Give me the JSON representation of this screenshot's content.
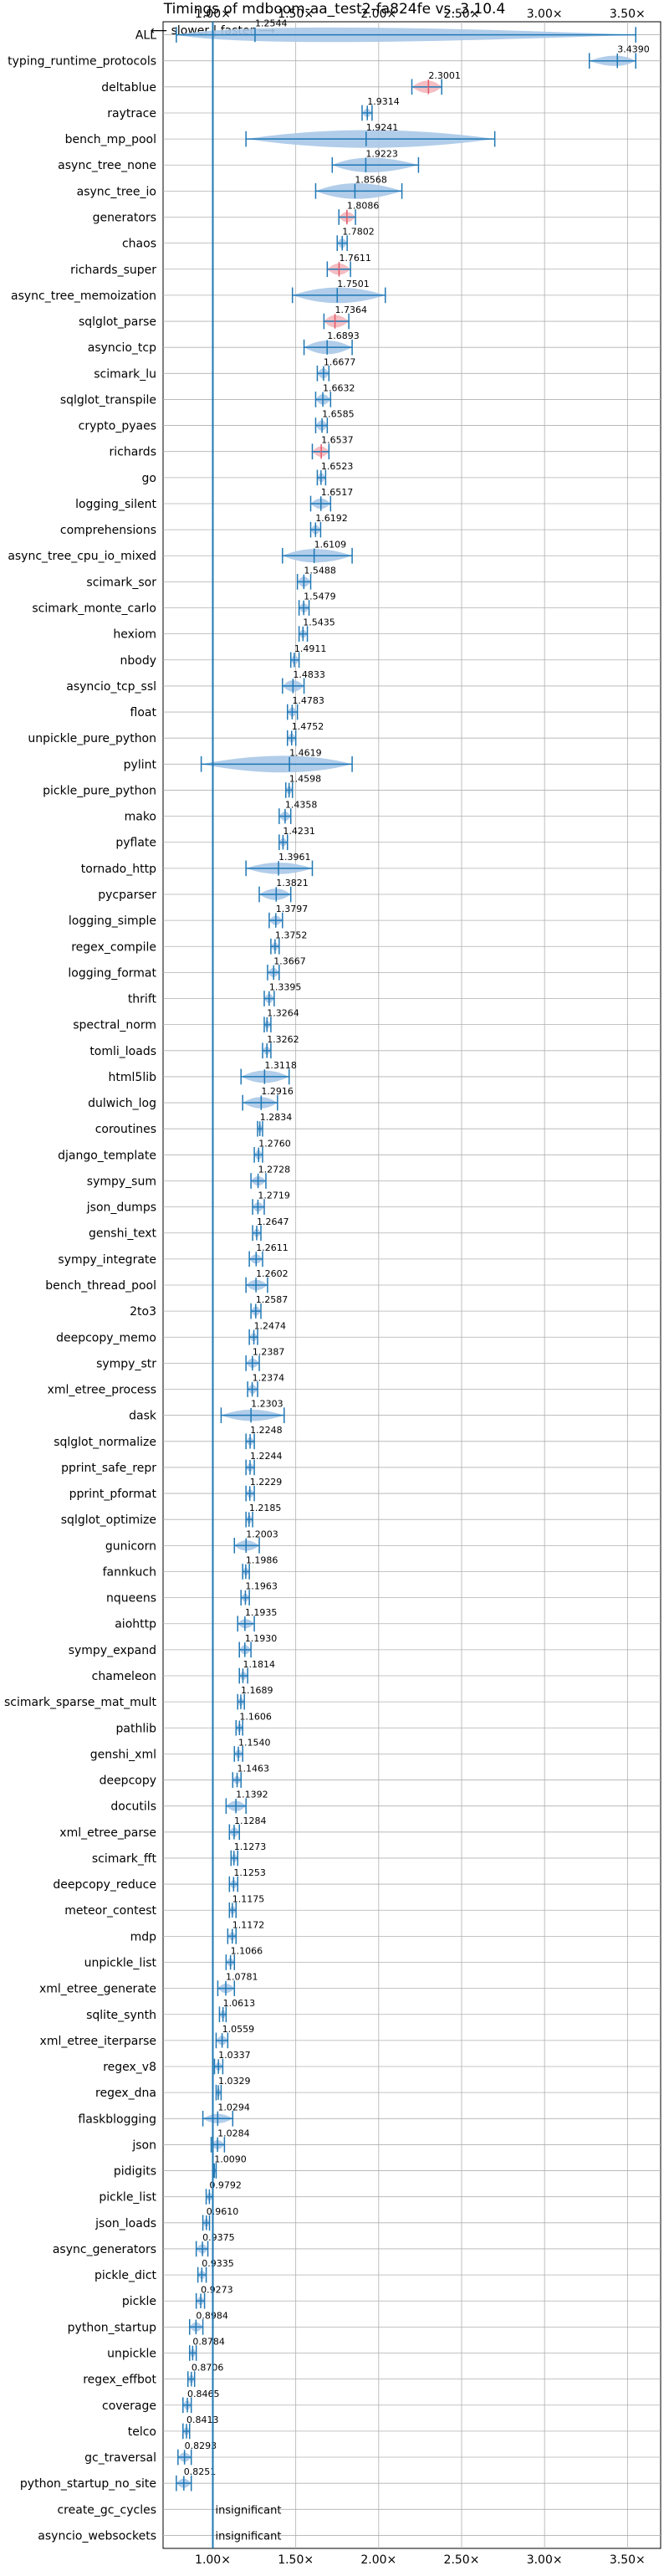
{
  "chart_data": {
    "type": "violin",
    "title": "Timings of mdboom-aa_test2-fa824fe vs. 3.10.4",
    "direction_note": "⟵ slower | faster ⟶",
    "xlim": [
      0.7,
      3.7
    ],
    "xticks": [
      1.0,
      1.5,
      2.0,
      2.5,
      3.0,
      3.5
    ],
    "xtick_labels": [
      "1.00×",
      "1.50×",
      "2.00×",
      "2.50×",
      "3.00×",
      "3.50×"
    ],
    "reference_x": 1.0,
    "colors": {
      "violin": "#a8c8e8",
      "violin_significant_worse": "#f3b7bd",
      "line": "#1f77b4",
      "mean_worse": "#e05a6a",
      "grid": "#b0b0b0"
    },
    "series": [
      {
        "name": "ALL",
        "mean": 1.2544,
        "lo": 0.78,
        "hi": 3.55,
        "w": 0.7,
        "label": "1.2544"
      },
      {
        "name": "typing_runtime_protocols",
        "mean": 3.439,
        "lo": 3.27,
        "hi": 3.55,
        "w": 0.5,
        "label": "3.4390"
      },
      {
        "name": "deltablue",
        "mean": 2.3001,
        "lo": 2.2,
        "hi": 2.38,
        "w": 0.6,
        "label": "2.3001",
        "worse": true
      },
      {
        "name": "raytrace",
        "mean": 1.9314,
        "lo": 1.9,
        "hi": 1.96,
        "w": 0.4,
        "label": "1.9314"
      },
      {
        "name": "bench_mp_pool",
        "mean": 1.9241,
        "lo": 1.2,
        "hi": 2.7,
        "w": 0.85,
        "label": "1.9241"
      },
      {
        "name": "async_tree_none",
        "mean": 1.9223,
        "lo": 1.72,
        "hi": 2.24,
        "w": 0.7,
        "label": "1.9223"
      },
      {
        "name": "async_tree_io",
        "mean": 1.8568,
        "lo": 1.62,
        "hi": 2.14,
        "w": 0.75,
        "label": "1.8568"
      },
      {
        "name": "generators",
        "mean": 1.8086,
        "lo": 1.76,
        "hi": 1.86,
        "w": 0.5,
        "label": "1.8086",
        "worse": true
      },
      {
        "name": "chaos",
        "mean": 1.7802,
        "lo": 1.75,
        "hi": 1.81,
        "w": 0.45,
        "label": "1.7802"
      },
      {
        "name": "richards_super",
        "mean": 1.7611,
        "lo": 1.69,
        "hi": 1.83,
        "w": 0.55,
        "label": "1.7611",
        "worse": true
      },
      {
        "name": "async_tree_memoization",
        "mean": 1.7501,
        "lo": 1.48,
        "hi": 2.04,
        "w": 0.75,
        "label": "1.7501"
      },
      {
        "name": "sqlglot_parse",
        "mean": 1.7364,
        "lo": 1.67,
        "hi": 1.82,
        "w": 0.6,
        "label": "1.7364",
        "worse": true
      },
      {
        "name": "asyncio_tcp",
        "mean": 1.6893,
        "lo": 1.55,
        "hi": 1.84,
        "w": 0.65,
        "label": "1.6893"
      },
      {
        "name": "scimark_lu",
        "mean": 1.6677,
        "lo": 1.63,
        "hi": 1.7,
        "w": 0.5,
        "label": "1.6677"
      },
      {
        "name": "sqlglot_transpile",
        "mean": 1.6632,
        "lo": 1.62,
        "hi": 1.71,
        "w": 0.5,
        "label": "1.6632"
      },
      {
        "name": "crypto_pyaes",
        "mean": 1.6585,
        "lo": 1.62,
        "hi": 1.69,
        "w": 0.5,
        "label": "1.6585"
      },
      {
        "name": "richards",
        "mean": 1.6537,
        "lo": 1.6,
        "hi": 1.7,
        "w": 0.5,
        "label": "1.6537",
        "worse": true
      },
      {
        "name": "go",
        "mean": 1.6523,
        "lo": 1.63,
        "hi": 1.68,
        "w": 0.45,
        "label": "1.6523"
      },
      {
        "name": "logging_silent",
        "mean": 1.6517,
        "lo": 1.59,
        "hi": 1.71,
        "w": 0.5,
        "label": "1.6517"
      },
      {
        "name": "comprehensions",
        "mean": 1.6192,
        "lo": 1.59,
        "hi": 1.65,
        "w": 0.45,
        "label": "1.6192"
      },
      {
        "name": "async_tree_cpu_io_mixed",
        "mean": 1.6109,
        "lo": 1.42,
        "hi": 1.84,
        "w": 0.65,
        "label": "1.6109"
      },
      {
        "name": "scimark_sor",
        "mean": 1.5488,
        "lo": 1.51,
        "hi": 1.59,
        "w": 0.5,
        "label": "1.5488"
      },
      {
        "name": "scimark_monte_carlo",
        "mean": 1.5479,
        "lo": 1.52,
        "hi": 1.58,
        "w": 0.45,
        "label": "1.5479"
      },
      {
        "name": "hexiom",
        "mean": 1.5435,
        "lo": 1.52,
        "hi": 1.57,
        "w": 0.4,
        "label": "1.5435"
      },
      {
        "name": "nbody",
        "mean": 1.4911,
        "lo": 1.47,
        "hi": 1.52,
        "w": 0.45,
        "label": "1.4911"
      },
      {
        "name": "asyncio_tcp_ssl",
        "mean": 1.4833,
        "lo": 1.42,
        "hi": 1.55,
        "w": 0.55,
        "label": "1.4833"
      },
      {
        "name": "float",
        "mean": 1.4783,
        "lo": 1.45,
        "hi": 1.51,
        "w": 0.45,
        "label": "1.4783"
      },
      {
        "name": "unpickle_pure_python",
        "mean": 1.4752,
        "lo": 1.45,
        "hi": 1.5,
        "w": 0.45,
        "label": "1.4752"
      },
      {
        "name": "pylint",
        "mean": 1.4619,
        "lo": 0.93,
        "hi": 1.84,
        "w": 0.8,
        "label": "1.4619"
      },
      {
        "name": "pickle_pure_python",
        "mean": 1.4598,
        "lo": 1.44,
        "hi": 1.48,
        "w": 0.4,
        "label": "1.4598"
      },
      {
        "name": "mako",
        "mean": 1.4358,
        "lo": 1.4,
        "hi": 1.47,
        "w": 0.45,
        "label": "1.4358"
      },
      {
        "name": "pyflate",
        "mean": 1.4231,
        "lo": 1.4,
        "hi": 1.45,
        "w": 0.4,
        "label": "1.4231"
      },
      {
        "name": "tornado_http",
        "mean": 1.3961,
        "lo": 1.2,
        "hi": 1.6,
        "w": 0.55,
        "label": "1.3961"
      },
      {
        "name": "pycparser",
        "mean": 1.3821,
        "lo": 1.28,
        "hi": 1.47,
        "w": 0.55,
        "label": "1.3821"
      },
      {
        "name": "logging_simple",
        "mean": 1.3797,
        "lo": 1.34,
        "hi": 1.42,
        "w": 0.45,
        "label": "1.3797"
      },
      {
        "name": "regex_compile",
        "mean": 1.3752,
        "lo": 1.35,
        "hi": 1.4,
        "w": 0.4,
        "label": "1.3752"
      },
      {
        "name": "logging_format",
        "mean": 1.3667,
        "lo": 1.33,
        "hi": 1.4,
        "w": 0.45,
        "label": "1.3667"
      },
      {
        "name": "thrift",
        "mean": 1.3395,
        "lo": 1.31,
        "hi": 1.37,
        "w": 0.45,
        "label": "1.3395"
      },
      {
        "name": "spectral_norm",
        "mean": 1.3264,
        "lo": 1.31,
        "hi": 1.35,
        "w": 0.4,
        "label": "1.3264"
      },
      {
        "name": "tomli_loads",
        "mean": 1.3262,
        "lo": 1.3,
        "hi": 1.35,
        "w": 0.4,
        "label": "1.3262"
      },
      {
        "name": "html5lib",
        "mean": 1.3118,
        "lo": 1.17,
        "hi": 1.46,
        "w": 0.6,
        "label": "1.3118"
      },
      {
        "name": "dulwich_log",
        "mean": 1.2916,
        "lo": 1.18,
        "hi": 1.39,
        "w": 0.55,
        "label": "1.2916"
      },
      {
        "name": "coroutines",
        "mean": 1.2834,
        "lo": 1.27,
        "hi": 1.3,
        "w": 0.4,
        "label": "1.2834"
      },
      {
        "name": "django_template",
        "mean": 1.276,
        "lo": 1.25,
        "hi": 1.3,
        "w": 0.45,
        "label": "1.2760"
      },
      {
        "name": "sympy_sum",
        "mean": 1.2728,
        "lo": 1.23,
        "hi": 1.32,
        "w": 0.45,
        "label": "1.2728"
      },
      {
        "name": "json_dumps",
        "mean": 1.2719,
        "lo": 1.24,
        "hi": 1.31,
        "w": 0.45,
        "label": "1.2719"
      },
      {
        "name": "genshi_text",
        "mean": 1.2647,
        "lo": 1.24,
        "hi": 1.29,
        "w": 0.4,
        "label": "1.2647"
      },
      {
        "name": "sympy_integrate",
        "mean": 1.2611,
        "lo": 1.22,
        "hi": 1.3,
        "w": 0.45,
        "label": "1.2611"
      },
      {
        "name": "bench_thread_pool",
        "mean": 1.2602,
        "lo": 1.2,
        "hi": 1.33,
        "w": 0.5,
        "label": "1.2602"
      },
      {
        "name": "2to3",
        "mean": 1.2587,
        "lo": 1.23,
        "hi": 1.29,
        "w": 0.45,
        "label": "1.2587"
      },
      {
        "name": "deepcopy_memo",
        "mean": 1.2474,
        "lo": 1.22,
        "hi": 1.27,
        "w": 0.4,
        "label": "1.2474"
      },
      {
        "name": "sympy_str",
        "mean": 1.2387,
        "lo": 1.2,
        "hi": 1.28,
        "w": 0.45,
        "label": "1.2387"
      },
      {
        "name": "xml_etree_process",
        "mean": 1.2374,
        "lo": 1.21,
        "hi": 1.27,
        "w": 0.45,
        "label": "1.2374"
      },
      {
        "name": "dask",
        "mean": 1.2303,
        "lo": 1.05,
        "hi": 1.43,
        "w": 0.55,
        "label": "1.2303"
      },
      {
        "name": "sqlglot_normalize",
        "mean": 1.2248,
        "lo": 1.2,
        "hi": 1.25,
        "w": 0.4,
        "label": "1.2248"
      },
      {
        "name": "pprint_safe_repr",
        "mean": 1.2244,
        "lo": 1.2,
        "hi": 1.25,
        "w": 0.4,
        "label": "1.2244"
      },
      {
        "name": "pprint_pformat",
        "mean": 1.2229,
        "lo": 1.2,
        "hi": 1.25,
        "w": 0.4,
        "label": "1.2229"
      },
      {
        "name": "sqlglot_optimize",
        "mean": 1.2185,
        "lo": 1.2,
        "hi": 1.24,
        "w": 0.4,
        "label": "1.2185"
      },
      {
        "name": "gunicorn",
        "mean": 1.2003,
        "lo": 1.13,
        "hi": 1.28,
        "w": 0.5,
        "label": "1.2003"
      },
      {
        "name": "fannkuch",
        "mean": 1.1986,
        "lo": 1.18,
        "hi": 1.22,
        "w": 0.4,
        "label": "1.1986"
      },
      {
        "name": "nqueens",
        "mean": 1.1963,
        "lo": 1.17,
        "hi": 1.22,
        "w": 0.4,
        "label": "1.1963"
      },
      {
        "name": "aiohttp",
        "mean": 1.1935,
        "lo": 1.15,
        "hi": 1.25,
        "w": 0.45,
        "label": "1.1935"
      },
      {
        "name": "sympy_expand",
        "mean": 1.193,
        "lo": 1.16,
        "hi": 1.23,
        "w": 0.45,
        "label": "1.1930"
      },
      {
        "name": "chameleon",
        "mean": 1.1814,
        "lo": 1.16,
        "hi": 1.21,
        "w": 0.4,
        "label": "1.1814"
      },
      {
        "name": "scimark_sparse_mat_mult",
        "mean": 1.1689,
        "lo": 1.15,
        "hi": 1.19,
        "w": 0.4,
        "label": "1.1689"
      },
      {
        "name": "pathlib",
        "mean": 1.1606,
        "lo": 1.14,
        "hi": 1.18,
        "w": 0.4,
        "label": "1.1606"
      },
      {
        "name": "genshi_xml",
        "mean": 1.154,
        "lo": 1.13,
        "hi": 1.18,
        "w": 0.4,
        "label": "1.1540"
      },
      {
        "name": "deepcopy",
        "mean": 1.1463,
        "lo": 1.12,
        "hi": 1.17,
        "w": 0.4,
        "label": "1.1463"
      },
      {
        "name": "docutils",
        "mean": 1.1392,
        "lo": 1.08,
        "hi": 1.2,
        "w": 0.5,
        "label": "1.1392"
      },
      {
        "name": "xml_etree_parse",
        "mean": 1.1284,
        "lo": 1.1,
        "hi": 1.16,
        "w": 0.45,
        "label": "1.1284"
      },
      {
        "name": "scimark_fft",
        "mean": 1.1273,
        "lo": 1.11,
        "hi": 1.15,
        "w": 0.4,
        "label": "1.1273"
      },
      {
        "name": "deepcopy_reduce",
        "mean": 1.1253,
        "lo": 1.1,
        "hi": 1.15,
        "w": 0.4,
        "label": "1.1253"
      },
      {
        "name": "meteor_contest",
        "mean": 1.1175,
        "lo": 1.1,
        "hi": 1.14,
        "w": 0.4,
        "label": "1.1175"
      },
      {
        "name": "mdp",
        "mean": 1.1172,
        "lo": 1.09,
        "hi": 1.14,
        "w": 0.4,
        "label": "1.1172"
      },
      {
        "name": "unpickle_list",
        "mean": 1.1066,
        "lo": 1.08,
        "hi": 1.13,
        "w": 0.4,
        "label": "1.1066"
      },
      {
        "name": "xml_etree_generate",
        "mean": 1.0781,
        "lo": 1.03,
        "hi": 1.13,
        "w": 0.45,
        "label": "1.0781"
      },
      {
        "name": "sqlite_synth",
        "mean": 1.0613,
        "lo": 1.04,
        "hi": 1.08,
        "w": 0.4,
        "label": "1.0613"
      },
      {
        "name": "xml_etree_iterparse",
        "mean": 1.0559,
        "lo": 1.02,
        "hi": 1.09,
        "w": 0.45,
        "label": "1.0559"
      },
      {
        "name": "regex_v8",
        "mean": 1.0337,
        "lo": 1.01,
        "hi": 1.06,
        "w": 0.4,
        "label": "1.0337"
      },
      {
        "name": "regex_dna",
        "mean": 1.0329,
        "lo": 1.02,
        "hi": 1.05,
        "w": 0.4,
        "label": "1.0329"
      },
      {
        "name": "flaskblogging",
        "mean": 1.0294,
        "lo": 0.94,
        "hi": 1.12,
        "w": 0.45,
        "label": "1.0294"
      },
      {
        "name": "json",
        "mean": 1.0284,
        "lo": 0.99,
        "hi": 1.07,
        "w": 0.45,
        "label": "1.0284"
      },
      {
        "name": "pidigits",
        "mean": 1.009,
        "lo": 1.0,
        "hi": 1.02,
        "w": 0.35,
        "label": "1.0090"
      },
      {
        "name": "pickle_list",
        "mean": 0.9792,
        "lo": 0.96,
        "hi": 1.0,
        "w": 0.4,
        "label": "0.9792"
      },
      {
        "name": "json_loads",
        "mean": 0.961,
        "lo": 0.94,
        "hi": 0.98,
        "w": 0.4,
        "label": "0.9610"
      },
      {
        "name": "async_generators",
        "mean": 0.9375,
        "lo": 0.9,
        "hi": 0.97,
        "w": 0.45,
        "label": "0.9375"
      },
      {
        "name": "pickle_dict",
        "mean": 0.9335,
        "lo": 0.91,
        "hi": 0.96,
        "w": 0.4,
        "label": "0.9335"
      },
      {
        "name": "pickle",
        "mean": 0.9273,
        "lo": 0.9,
        "hi": 0.95,
        "w": 0.4,
        "label": "0.9273"
      },
      {
        "name": "python_startup",
        "mean": 0.8984,
        "lo": 0.86,
        "hi": 0.94,
        "w": 0.45,
        "label": "0.8984"
      },
      {
        "name": "unpickle",
        "mean": 0.8784,
        "lo": 0.86,
        "hi": 0.9,
        "w": 0.4,
        "label": "0.8784"
      },
      {
        "name": "regex_effbot",
        "mean": 0.8706,
        "lo": 0.85,
        "hi": 0.89,
        "w": 0.4,
        "label": "0.8706"
      },
      {
        "name": "coverage",
        "mean": 0.8465,
        "lo": 0.82,
        "hi": 0.87,
        "w": 0.45,
        "label": "0.8465"
      },
      {
        "name": "telco",
        "mean": 0.8413,
        "lo": 0.82,
        "hi": 0.86,
        "w": 0.4,
        "label": "0.8413"
      },
      {
        "name": "gc_traversal",
        "mean": 0.8293,
        "lo": 0.79,
        "hi": 0.87,
        "w": 0.45,
        "label": "0.8293"
      },
      {
        "name": "python_startup_no_site",
        "mean": 0.8251,
        "lo": 0.78,
        "hi": 0.87,
        "w": 0.45,
        "label": "0.8251"
      },
      {
        "name": "create_gc_cycles",
        "insignificant": true,
        "label": "insignificant"
      },
      {
        "name": "asyncio_websockets",
        "insignificant": true,
        "label": "insignificant"
      }
    ]
  }
}
